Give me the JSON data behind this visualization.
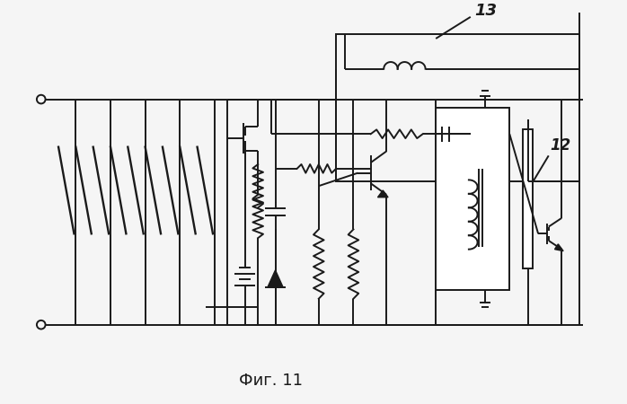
{
  "title": "Фиг. 11",
  "label_13": "13",
  "label_12": "12",
  "bg_color": "#f5f5f5",
  "line_color": "#1a1a1a",
  "linewidth": 1.4,
  "font_size_label": 12,
  "font_size_title": 13
}
